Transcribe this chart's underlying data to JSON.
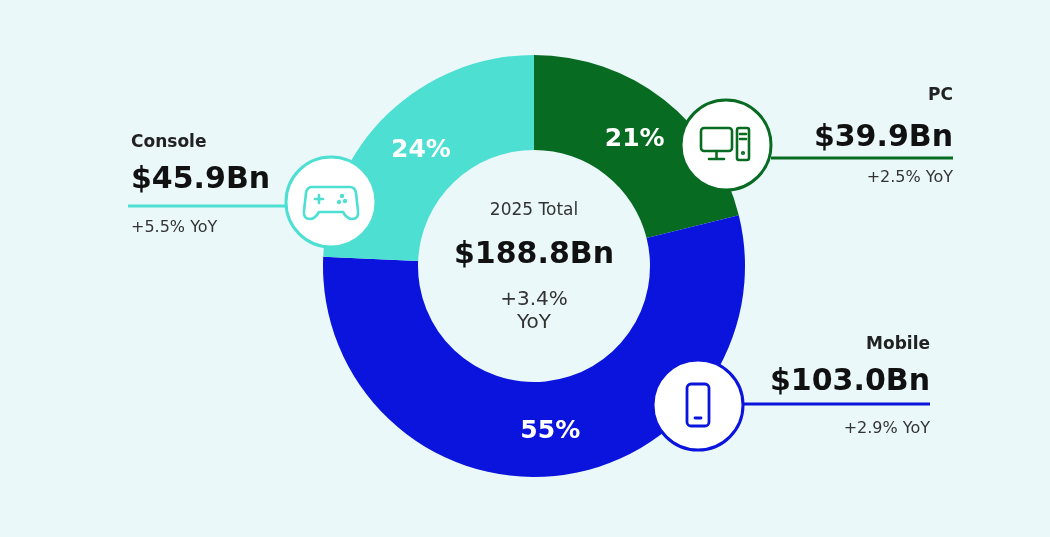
{
  "chart_data": {
    "type": "donut",
    "categories": [
      "PC",
      "Mobile",
      "Console"
    ],
    "values": [
      39.9,
      103.0,
      45.9
    ],
    "colors": [
      "#086b22",
      "#0b14dc",
      "#4ddfd1"
    ],
    "value_labels": [
      "$39.9Bn",
      "$103.0Bn",
      "$45.9Bn"
    ],
    "annotations": [
      {
        "text": "21%",
        "x": "PC"
      },
      {
        "text": "55%",
        "x": "Mobile"
      },
      {
        "text": "24%",
        "x": "Console"
      },
      {
        "text": "+2.5% YoY",
        "x": "PC"
      },
      {
        "text": "+2.9% YoY",
        "x": "Mobile"
      },
      {
        "text": "+5.5% YoY",
        "x": "Console"
      },
      "2025 Total",
      "$188.8Bn",
      "+3.4% YoY"
    ]
  }
}
